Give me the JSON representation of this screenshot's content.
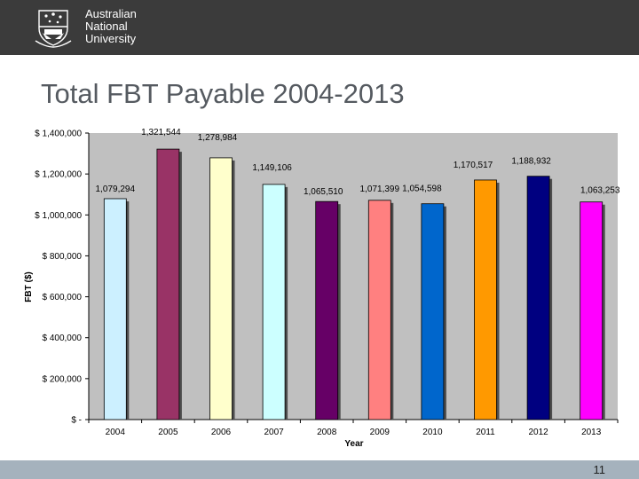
{
  "header": {
    "logo_lines": [
      "Australian",
      "National",
      "University"
    ],
    "background": "#3b3b3b"
  },
  "slide": {
    "title": "Total FBT Payable 2004-2013",
    "page_number": "11"
  },
  "chart_data": {
    "type": "bar",
    "xlabel": "Year",
    "ylabel": "FBT ($)",
    "ylim": [
      0,
      1400000
    ],
    "ytick_values": [
      0,
      200000,
      400000,
      600000,
      800000,
      1000000,
      1200000,
      1400000
    ],
    "ytick_labels": [
      "$ -",
      "$ 200,000",
      "$ 400,000",
      "$ 600,000",
      "$ 800,000",
      "$ 1,000,000",
      "$ 1,200,000",
      "$ 1,400,000"
    ],
    "grid": false,
    "categories": [
      "2004",
      "2005",
      "2006",
      "2007",
      "2008",
      "2009",
      "2010",
      "2011",
      "2012",
      "2013"
    ],
    "values": [
      1079294,
      1321544,
      1278984,
      1149106,
      1065510,
      1071399,
      1054598,
      1170517,
      1188932,
      1063253
    ],
    "data_labels": [
      "1,079,294",
      "1,321,544",
      "1,278,984",
      "1,149,106",
      "1,065,510",
      "1,071,399",
      "1,054,598",
      "1,170,517",
      "1,188,932",
      "1,063,253"
    ],
    "colors": [
      "#ccf0ff",
      "#993366",
      "#ffffcc",
      "#ccffff",
      "#660066",
      "#ff8080",
      "#0066cc",
      "#ff9900",
      "#000080",
      "#ff00ff"
    ]
  }
}
